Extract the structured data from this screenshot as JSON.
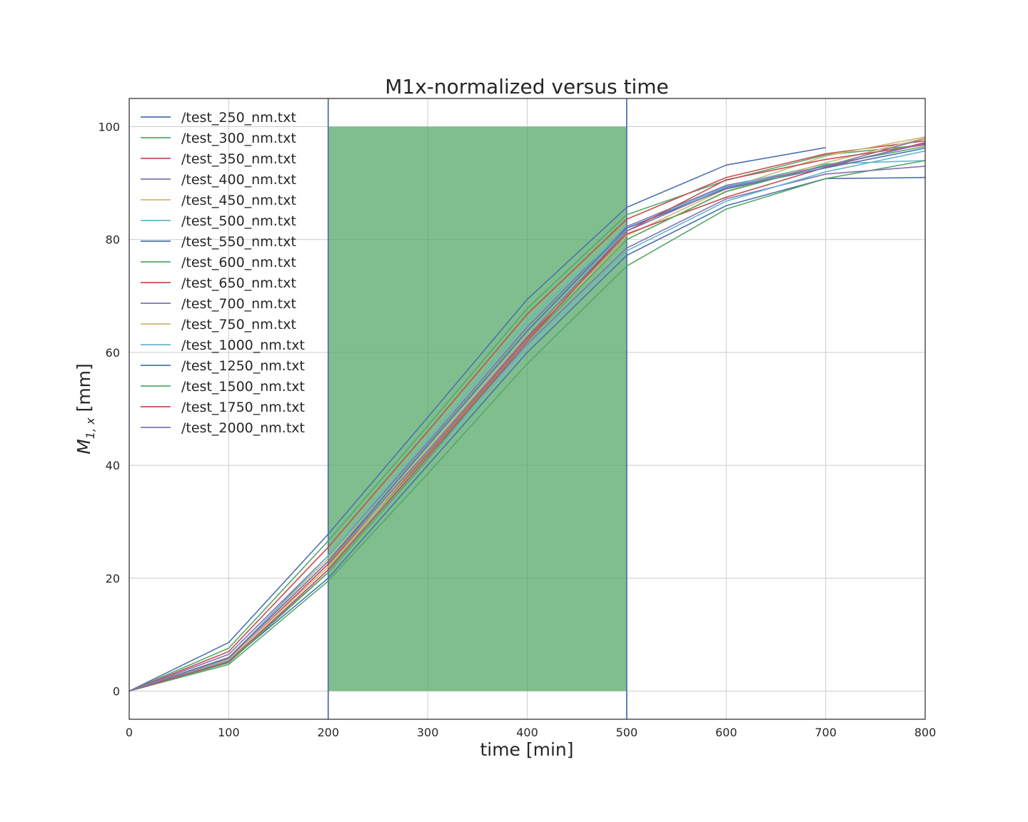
{
  "chart_data": {
    "type": "line",
    "title": "M1x-normalized versus time",
    "xlabel": "time [min]",
    "ylabel_main": "M",
    "ylabel_sub": "1, x",
    "ylabel_rest": " [mm]",
    "xlim": [
      0,
      800
    ],
    "ylim": [
      -5,
      105
    ],
    "xticks": [
      0,
      100,
      200,
      300,
      400,
      500,
      600,
      700,
      800
    ],
    "yticks": [
      0,
      20,
      40,
      60,
      80,
      100
    ],
    "grid": true,
    "legend_position": "upper-left",
    "shaded_region": {
      "x": [
        200,
        500
      ],
      "y": [
        0,
        100
      ],
      "color": "#55a868",
      "opacity": 0.75
    },
    "vertical_lines": [
      {
        "x": 200,
        "color": "#4c72b0"
      },
      {
        "x": 500,
        "color": "#4c72b0"
      }
    ],
    "series": [
      {
        "name": "/test_250_nm.txt",
        "color": "#4c72b0",
        "x": [
          0,
          100,
          200,
          300,
          400,
          500,
          600,
          700
        ],
        "y": [
          0,
          8.6,
          27.8,
          48.5,
          69.4,
          85.7,
          93.2,
          96.3
        ]
      },
      {
        "name": "/test_300_nm.txt",
        "color": "#55a868",
        "x": [
          0,
          100,
          200,
          300,
          400,
          500,
          600,
          700,
          800
        ],
        "y": [
          0,
          7.6,
          26.6,
          47.0,
          67.8,
          84.4,
          90.5,
          95.0,
          96.8
        ]
      },
      {
        "name": "/test_350_nm.txt",
        "color": "#c44e52",
        "x": [
          0,
          100,
          200,
          300,
          400,
          500,
          600,
          700,
          800
        ],
        "y": [
          0,
          7.0,
          25.5,
          46.0,
          66.8,
          83.6,
          91.0,
          95.2,
          97.5
        ]
      },
      {
        "name": "/test_400_nm.txt",
        "color": "#8172b2",
        "x": [
          0,
          100,
          200,
          300,
          400,
          500,
          600,
          700,
          800
        ],
        "y": [
          0,
          6.5,
          24.0,
          44.0,
          64.5,
          82.3,
          89.6,
          93.0,
          97.9
        ]
      },
      {
        "name": "/test_450_nm.txt",
        "color": "#ccb974",
        "x": [
          0,
          100,
          200,
          300,
          400,
          500,
          600,
          700,
          800
        ],
        "y": [
          0,
          6.0,
          23.5,
          43.0,
          63.0,
          80.7,
          89.0,
          94.8,
          98.2
        ]
      },
      {
        "name": "/test_500_nm.txt",
        "color": "#64b5cd",
        "x": [
          0,
          100,
          200,
          300,
          400,
          500,
          600,
          700,
          800
        ],
        "y": [
          0,
          5.8,
          24.0,
          44.5,
          65.5,
          82.0,
          89.4,
          93.4,
          94.0
        ]
      },
      {
        "name": "/test_550_nm.txt",
        "color": "#4c72b0",
        "x": [
          0,
          100,
          200,
          300,
          400,
          500,
          600,
          700,
          800
        ],
        "y": [
          0,
          5.2,
          20.0,
          40.0,
          60.0,
          77.2,
          86.0,
          90.8,
          91.0
        ]
      },
      {
        "name": "/test_600_nm.txt",
        "color": "#55a868",
        "x": [
          0,
          100,
          200,
          300,
          400,
          500,
          600,
          700,
          800
        ],
        "y": [
          0,
          4.7,
          19.5,
          38.5,
          58.0,
          75.3,
          85.4,
          90.8,
          94.0
        ]
      },
      {
        "name": "/test_650_nm.txt",
        "color": "#c44e52",
        "x": [
          0,
          100,
          200,
          300,
          400,
          500,
          600,
          700,
          800
        ],
        "y": [
          0,
          5.5,
          22.5,
          42.0,
          62.5,
          81.0,
          87.5,
          92.8,
          97.2
        ]
      },
      {
        "name": "/test_700_nm.txt",
        "color": "#8172b2",
        "x": [
          0,
          100,
          200,
          300,
          400,
          500,
          600,
          700,
          800
        ],
        "y": [
          0,
          5.3,
          21.5,
          41.5,
          61.5,
          78.5,
          87.2,
          91.6,
          93.0
        ]
      },
      {
        "name": "/test_750_nm.txt",
        "color": "#ccb974",
        "x": [
          0,
          100,
          200,
          300,
          400,
          500,
          600,
          700,
          800
        ],
        "y": [
          0,
          5.6,
          22.0,
          42.5,
          63.0,
          80.0,
          88.6,
          93.6,
          98.0
        ]
      },
      {
        "name": "/test_1000_nm.txt",
        "color": "#64b5cd",
        "x": [
          0,
          100,
          200,
          300,
          400,
          500,
          600,
          700,
          800
        ],
        "y": [
          0,
          5.4,
          21.0,
          41.0,
          61.0,
          78.0,
          86.8,
          92.0,
          95.7
        ]
      },
      {
        "name": "/test_1250_nm.txt",
        "color": "#4c72b0",
        "x": [
          0,
          100,
          200,
          300,
          400,
          500,
          600,
          700,
          800
        ],
        "y": [
          0,
          5.9,
          23.0,
          43.5,
          63.8,
          82.0,
          89.0,
          92.7,
          96.2
        ]
      },
      {
        "name": "/test_1500_nm.txt",
        "color": "#55a868",
        "x": [
          0,
          100,
          200,
          300,
          400,
          500,
          600,
          700,
          800
        ],
        "y": [
          0,
          5.0,
          21.0,
          41.0,
          62.0,
          80.0,
          88.5,
          93.2,
          96.5
        ]
      },
      {
        "name": "/test_1750_nm.txt",
        "color": "#c44e52",
        "x": [
          0,
          100,
          200,
          300,
          400,
          500,
          600,
          700,
          800
        ],
        "y": [
          0,
          5.2,
          21.5,
          41.5,
          62.0,
          81.5,
          90.6,
          94.2,
          96.8
        ]
      },
      {
        "name": "/test_2000_nm.txt",
        "color": "#8172b2",
        "x": [
          0,
          100,
          200,
          300,
          400,
          500,
          600,
          700,
          800
        ],
        "y": [
          0,
          5.8,
          23.0,
          42.5,
          62.8,
          81.5,
          89.2,
          93.0,
          97.0
        ]
      }
    ]
  }
}
